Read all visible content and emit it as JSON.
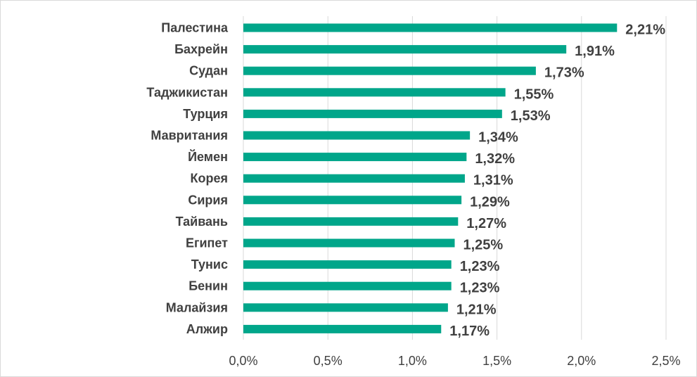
{
  "chart_data": {
    "type": "bar",
    "orientation": "horizontal",
    "categories": [
      "Палестина",
      "Бахрейн",
      "Судан",
      "Таджикистан",
      "Турция",
      "Мавритания",
      "Йемен",
      "Корея",
      "Сирия",
      "Тайвань",
      "Египет",
      "Тунис",
      "Бенин",
      "Малайзия",
      "Алжир"
    ],
    "values": [
      2.21,
      1.91,
      1.73,
      1.55,
      1.53,
      1.34,
      1.32,
      1.31,
      1.29,
      1.27,
      1.25,
      1.23,
      1.23,
      1.21,
      1.17
    ],
    "data_labels": [
      "2,21%",
      "1,91%",
      "1,73%",
      "1,55%",
      "1,53%",
      "1,34%",
      "1,32%",
      "1,31%",
      "1,29%",
      "1,27%",
      "1,25%",
      "1,23%",
      "1,23%",
      "1,21%",
      "1,17%"
    ],
    "x_ticks": [
      0,
      0.5,
      1.0,
      1.5,
      2.0,
      2.5
    ],
    "x_tick_labels": [
      "0,0%",
      "0,5%",
      "1,0%",
      "1,5%",
      "2,0%",
      "2,5%"
    ],
    "xlim": [
      0,
      2.5
    ],
    "grid": true,
    "legend": "none",
    "bar_color": "#00A68A",
    "title": "",
    "xlabel": "",
    "ylabel": ""
  }
}
